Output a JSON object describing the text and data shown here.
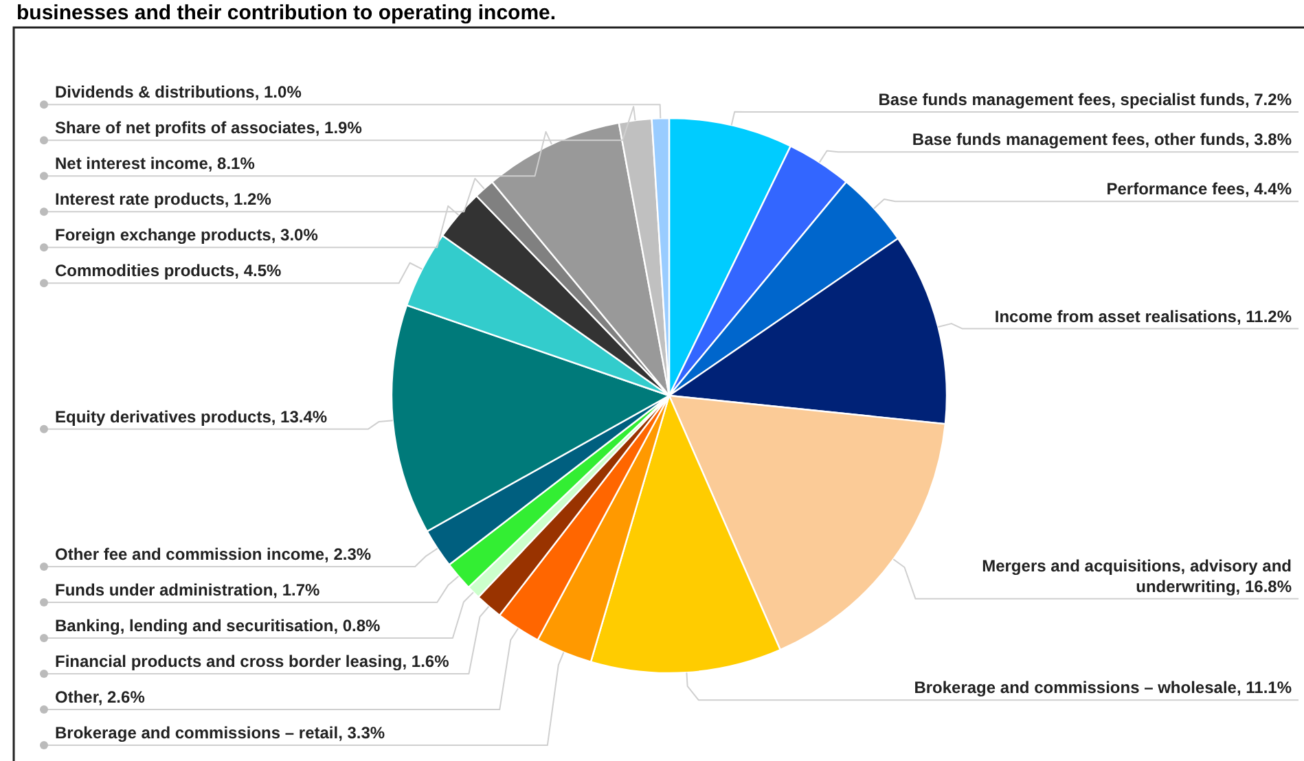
{
  "chart_data": {
    "type": "pie",
    "title": "businesses and their contribution to operating income.",
    "categories": [
      "Base funds management fees, specialist funds",
      "Base funds management fees, other funds",
      "Performance fees",
      "Income from asset realisations",
      "Mergers and acquisitions, advisory and underwriting",
      "Brokerage and commissions – wholesale",
      "Brokerage and commissions – retail",
      "Other",
      "Financial products and cross border leasing",
      "Banking, lending and securitisation",
      "Funds under administration",
      "Other fee and commission income",
      "Equity derivatives products",
      "Commodities products",
      "Foreign exchange products",
      "Interest rate products",
      "Net interest income",
      "Share of net profits of associates",
      "Dividends & distributions"
    ],
    "values": [
      7.2,
      3.8,
      4.4,
      11.2,
      16.8,
      11.1,
      3.3,
      2.6,
      1.6,
      0.8,
      1.7,
      2.3,
      13.4,
      4.5,
      3.0,
      1.2,
      8.1,
      1.9,
      1.0
    ],
    "value_labels": [
      "7.2%",
      "3.8%",
      "4.4%",
      "11.2%",
      "16.8%",
      "11.1%",
      "3.3%",
      "2.6%",
      "1.6%",
      "0.8%",
      "1.7%",
      "2.3%",
      "13.4%",
      "4.5%",
      "3.0%",
      "1.2%",
      "8.1%",
      "1.9%",
      "1.0%"
    ],
    "colors": [
      "#00ccff",
      "#3366ff",
      "#0066cc",
      "#002277",
      "#fbcb97",
      "#ffcc00",
      "#ff9900",
      "#ff6600",
      "#993300",
      "#ccffcc",
      "#33ee33",
      "#005f7f",
      "#007a7a",
      "#33cccc",
      "#333333",
      "#808080",
      "#999999",
      "#c0c0c0",
      "#99ccff"
    ]
  }
}
